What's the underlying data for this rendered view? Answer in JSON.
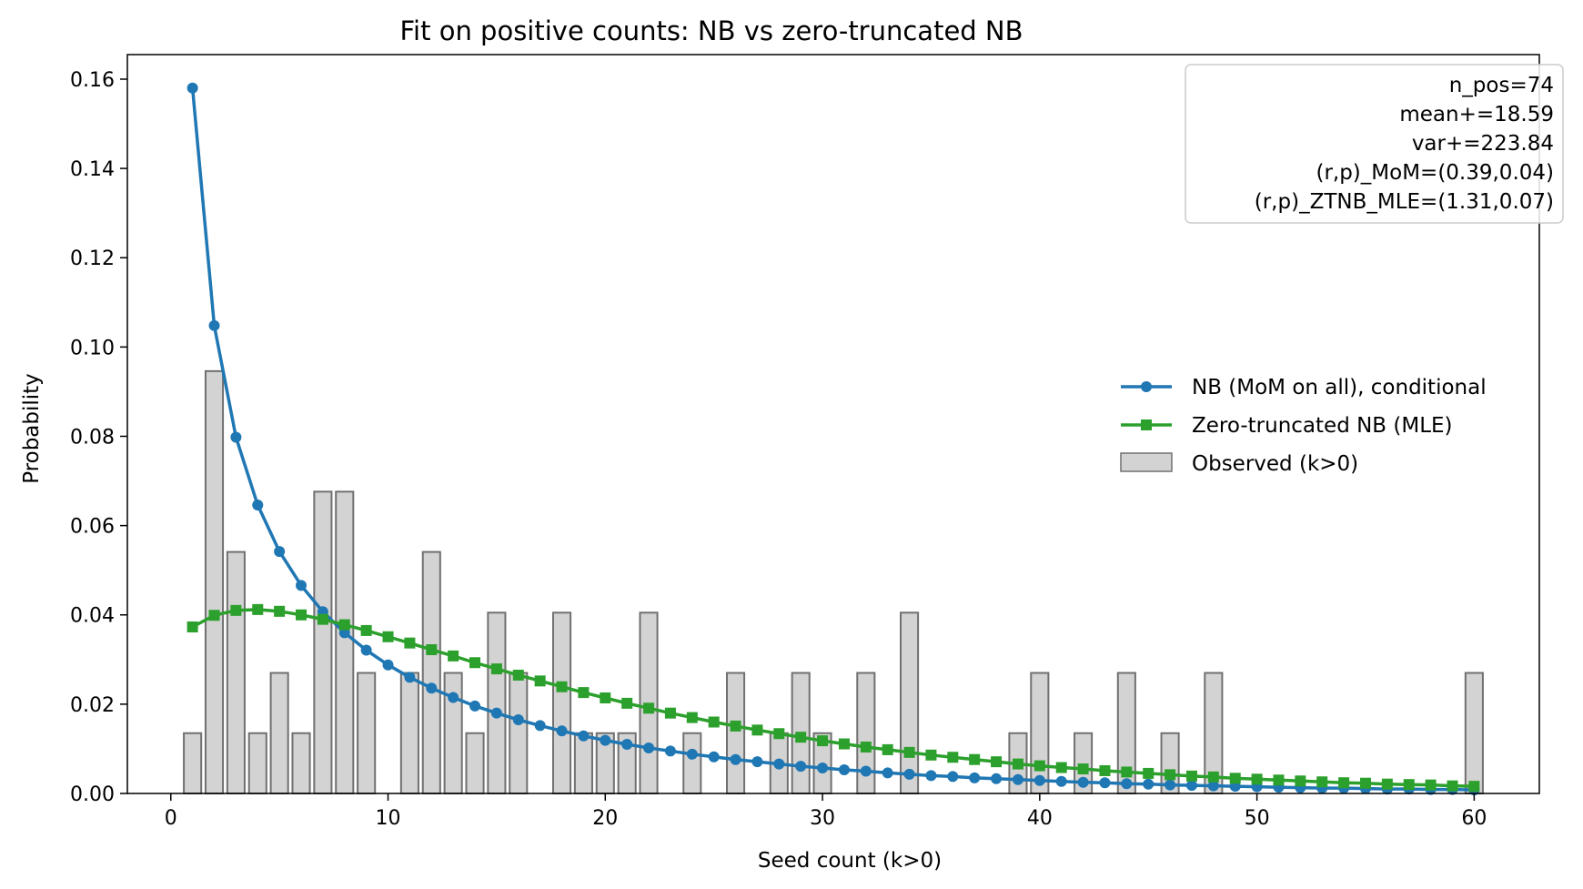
{
  "chart_data": {
    "type": "bar",
    "title": "Fit on positive counts: NB vs zero-truncated NB",
    "xlabel": "Seed count (k>0)",
    "ylabel": "Probability",
    "xlim": [
      -2,
      63
    ],
    "ylim": [
      0,
      0.1655
    ],
    "xticks": [
      0,
      10,
      20,
      30,
      40,
      50,
      60
    ],
    "yticks": [
      0.0,
      0.02,
      0.04,
      0.06,
      0.08,
      0.1,
      0.12,
      0.14,
      0.16
    ],
    "ytick_labels": [
      "0.00",
      "0.02",
      "0.04",
      "0.06",
      "0.08",
      "0.10",
      "0.12",
      "0.14",
      "0.16"
    ],
    "grid": false,
    "legend_position": "center-right",
    "annotation": [
      "n_pos=74",
      "mean+=18.59",
      "var+=223.84",
      "(r,p)_MoM=(0.39,0.04)",
      "(r,p)_ZTNB_MLE=(1.31,0.07)"
    ],
    "observed": {
      "name": "Observed (k>0)",
      "color": "#d3d3d3",
      "edge_color": "#707070",
      "x": [
        1,
        2,
        3,
        4,
        5,
        6,
        7,
        8,
        9,
        11,
        12,
        13,
        14,
        15,
        16,
        18,
        19,
        20,
        21,
        22,
        24,
        26,
        28,
        29,
        30,
        32,
        34,
        39,
        40,
        42,
        44,
        46,
        48,
        60
      ],
      "values": [
        0.0135,
        0.0946,
        0.0541,
        0.0135,
        0.027,
        0.0135,
        0.0676,
        0.0676,
        0.027,
        0.027,
        0.0541,
        0.027,
        0.0135,
        0.0405,
        0.027,
        0.0405,
        0.0135,
        0.0135,
        0.0135,
        0.0405,
        0.0135,
        0.027,
        0.0135,
        0.027,
        0.0135,
        0.027,
        0.0405,
        0.0135,
        0.027,
        0.0135,
        0.027,
        0.0135,
        0.027,
        0.027
      ]
    },
    "series": [
      {
        "name": "NB (MoM on all), conditional",
        "color": "#1f77b4",
        "marker": "circle",
        "x": [
          1,
          2,
          3,
          4,
          5,
          6,
          7,
          8,
          9,
          10,
          11,
          12,
          13,
          14,
          15,
          16,
          17,
          18,
          19,
          20,
          21,
          22,
          23,
          24,
          25,
          26,
          27,
          28,
          29,
          30,
          31,
          32,
          33,
          34,
          35,
          36,
          37,
          38,
          39,
          40,
          41,
          42,
          43,
          44,
          45,
          46,
          47,
          48,
          49,
          50,
          51,
          52,
          53,
          54,
          55,
          56,
          57,
          58,
          59,
          60
        ],
        "values": [
          0.158,
          0.1048,
          0.0798,
          0.0646,
          0.0542,
          0.0466,
          0.0407,
          0.036,
          0.0321,
          0.0288,
          0.026,
          0.0236,
          0.0215,
          0.0196,
          0.018,
          0.0165,
          0.0152,
          0.014,
          0.0129,
          0.0119,
          0.011,
          0.0102,
          0.0095,
          0.0088,
          0.0082,
          0.0076,
          0.0071,
          0.0066,
          0.0061,
          0.0057,
          0.0053,
          0.005,
          0.0046,
          0.0043,
          0.004,
          0.0038,
          0.0035,
          0.0033,
          0.0031,
          0.0029,
          0.0027,
          0.0025,
          0.0024,
          0.0022,
          0.0021,
          0.0019,
          0.0018,
          0.0017,
          0.0016,
          0.0015,
          0.0014,
          0.0013,
          0.0012,
          0.0012,
          0.0011,
          0.001,
          0.001,
          0.0009,
          0.0009,
          0.0008
        ]
      },
      {
        "name": "Zero-truncated NB (MLE)",
        "color": "#2ca02c",
        "marker": "square",
        "x": [
          1,
          2,
          3,
          4,
          5,
          6,
          7,
          8,
          9,
          10,
          11,
          12,
          13,
          14,
          15,
          16,
          17,
          18,
          19,
          20,
          21,
          22,
          23,
          24,
          25,
          26,
          27,
          28,
          29,
          30,
          31,
          32,
          33,
          34,
          35,
          36,
          37,
          38,
          39,
          40,
          41,
          42,
          43,
          44,
          45,
          46,
          47,
          48,
          49,
          50,
          51,
          52,
          53,
          54,
          55,
          56,
          57,
          58,
          59,
          60
        ],
        "values": [
          0.0373,
          0.0399,
          0.041,
          0.0412,
          0.0408,
          0.04,
          0.039,
          0.0378,
          0.0365,
          0.0351,
          0.0337,
          0.0322,
          0.0308,
          0.0293,
          0.0279,
          0.0265,
          0.0252,
          0.0239,
          0.0226,
          0.0214,
          0.0202,
          0.0191,
          0.018,
          0.017,
          0.016,
          0.0151,
          0.0142,
          0.0134,
          0.0126,
          0.0118,
          0.0111,
          0.0104,
          0.0098,
          0.0092,
          0.0086,
          0.0081,
          0.0076,
          0.0071,
          0.0066,
          0.0062,
          0.0058,
          0.0055,
          0.0051,
          0.0048,
          0.0045,
          0.0042,
          0.0039,
          0.0037,
          0.0034,
          0.0032,
          0.003,
          0.0028,
          0.0026,
          0.0024,
          0.0023,
          0.0021,
          0.002,
          0.0019,
          0.0017,
          0.0016
        ]
      }
    ]
  }
}
